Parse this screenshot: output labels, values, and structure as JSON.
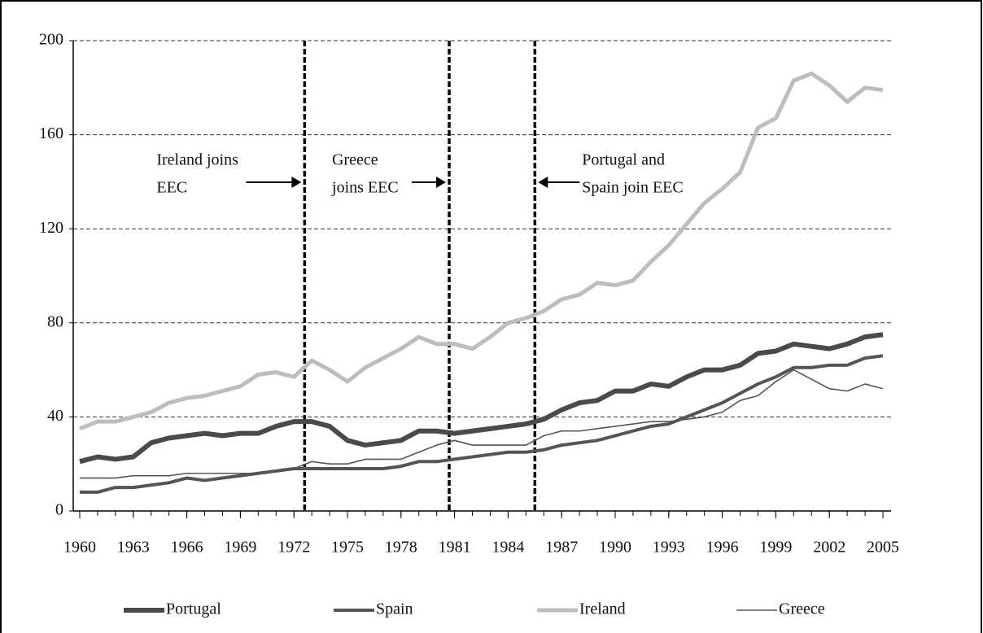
{
  "chart_data": {
    "type": "line",
    "x": [
      1960,
      1961,
      1962,
      1963,
      1964,
      1965,
      1966,
      1967,
      1968,
      1969,
      1970,
      1971,
      1972,
      1973,
      1974,
      1975,
      1976,
      1977,
      1978,
      1979,
      1980,
      1981,
      1982,
      1983,
      1984,
      1985,
      1986,
      1987,
      1988,
      1989,
      1990,
      1991,
      1992,
      1993,
      1994,
      1995,
      1996,
      1997,
      1998,
      1999,
      2000,
      2001,
      2002,
      2003,
      2004,
      2005
    ],
    "xlim": [
      1960,
      2005
    ],
    "xticks": [
      1960,
      1963,
      1966,
      1969,
      1972,
      1975,
      1978,
      1981,
      1984,
      1987,
      1990,
      1993,
      1996,
      1999,
      2002,
      2005
    ],
    "ylim": [
      0,
      200
    ],
    "yticks": [
      0,
      40,
      80,
      120,
      160,
      200
    ],
    "grid": true,
    "legend": "bottom",
    "series": [
      {
        "name": "Portugal",
        "color": "#4a4a4a",
        "values": [
          21,
          23,
          22,
          23,
          29,
          31,
          32,
          33,
          32,
          33,
          33,
          36,
          38,
          38,
          36,
          30,
          28,
          29,
          30,
          34,
          34,
          33,
          34,
          35,
          36,
          37,
          39,
          43,
          46,
          47,
          51,
          51,
          54,
          53,
          57,
          60,
          60,
          62,
          67,
          68,
          71,
          70,
          69,
          71,
          74,
          75
        ]
      },
      {
        "name": "Spain",
        "color": "#555555",
        "values": [
          8,
          8,
          10,
          10,
          11,
          12,
          14,
          13,
          14,
          15,
          16,
          17,
          18,
          18,
          18,
          18,
          18,
          18,
          19,
          21,
          21,
          22,
          23,
          24,
          25,
          25,
          26,
          28,
          29,
          30,
          32,
          34,
          36,
          37,
          40,
          43,
          46,
          50,
          54,
          57,
          61,
          61,
          62,
          62,
          65,
          66
        ]
      },
      {
        "name": "Ireland",
        "color": "#bdbdbd",
        "values": [
          35,
          38,
          38,
          40,
          42,
          46,
          48,
          49,
          51,
          53,
          58,
          59,
          57,
          64,
          60,
          55,
          61,
          65,
          69,
          74,
          71,
          71,
          69,
          74,
          80,
          82,
          85,
          90,
          92,
          97,
          96,
          98,
          106,
          113,
          122,
          131,
          137,
          144,
          163,
          167,
          183,
          186,
          181,
          174,
          180,
          179
        ]
      },
      {
        "name": "Greece",
        "color": "#555555",
        "values": [
          14,
          14,
          14,
          15,
          15,
          15,
          16,
          16,
          16,
          16,
          16,
          17,
          18,
          21,
          20,
          20,
          22,
          22,
          22,
          25,
          28,
          30,
          28,
          28,
          28,
          28,
          32,
          34,
          34,
          35,
          36,
          37,
          38,
          38,
          39,
          40,
          42,
          47,
          49,
          55,
          60,
          56,
          52,
          51,
          54,
          52
        ]
      }
    ],
    "annotations": [
      {
        "x": 1972.6,
        "lines": [
          "Ireland joins",
          "EEC"
        ]
      },
      {
        "x": 1980.7,
        "lines": [
          "Greece",
          "joins EEC"
        ]
      },
      {
        "x": 1985.5,
        "lines": [
          "Portugal and",
          "Spain join EEC"
        ]
      }
    ]
  }
}
